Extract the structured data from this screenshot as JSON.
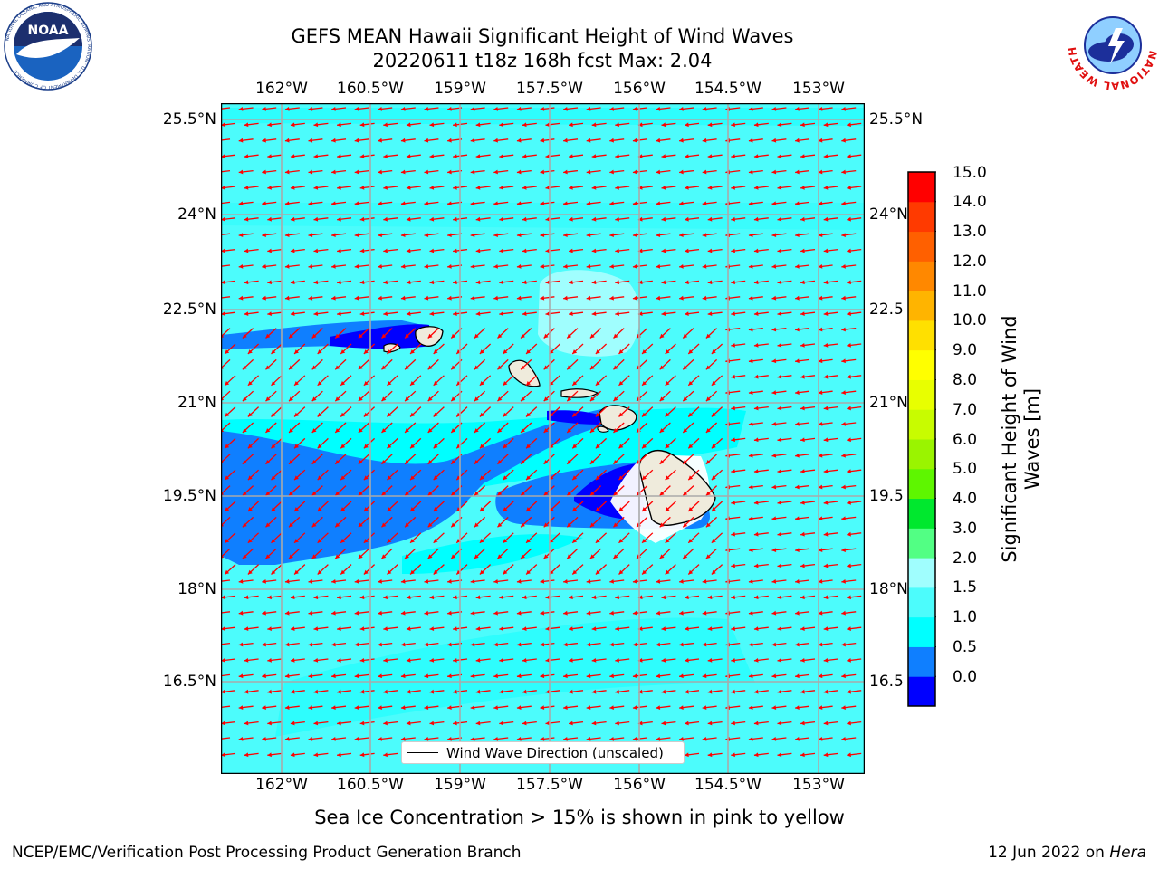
{
  "title": {
    "line1": "GEFS MEAN Hawaii Significant Height of Wind Waves",
    "line2": "20220611 t18z 168h fcst   Max: 2.04"
  },
  "map": {
    "lon_ticks": [
      "162°W",
      "160.5°W",
      "159°W",
      "157.5°W",
      "156°W",
      "154.5°W",
      "153°W"
    ],
    "lat_ticks": [
      "25.5°N",
      "24°N",
      "22.5°N",
      "21°N",
      "19.5°N",
      "18°N",
      "16.5°N"
    ],
    "lat_ticks_right": [
      "25.5°N",
      "24°N",
      "22.5",
      "21°N",
      "19.5",
      "18°N",
      "16.5"
    ],
    "arrow_color": "#ff0000",
    "legend_label": "Wind Wave Direction (unscaled)"
  },
  "colorbar": {
    "label": "Significant Height of Wind Waves [m]",
    "ticks": [
      "15.0",
      "14.0",
      "13.0",
      "12.0",
      "11.0",
      "10.0",
      "9.0",
      "8.0",
      "7.0",
      "6.0",
      "5.0",
      "4.0",
      "3.0",
      "2.0",
      "1.5",
      "1.0",
      "0.5",
      "0.0"
    ],
    "colors": [
      "#0000ff",
      "#0f7fff",
      "#00ffff",
      "#4cfcfc",
      "#a0fefe",
      "#52ff84",
      "#00e82e",
      "#5ef600",
      "#9af400",
      "#c8fc00",
      "#e8ff00",
      "#ffff00",
      "#ffe000",
      "#ffb400",
      "#ff8800",
      "#ff6000",
      "#ff3a00",
      "#ff0000"
    ]
  },
  "caption": "Sea Ice Concentration > 15% is shown in pink to yellow",
  "footer": {
    "left": "NCEP/EMC/Verification Post Processing Product Generation Branch",
    "right_date": "12 Jun 2022 on ",
    "right_host": "Hera"
  },
  "logos": {
    "left": "NOAA",
    "left_ring": "NATIONAL OCEANIC AND ATMOSPHERIC ADMINISTRATION · U.S. DEPARTMENT OF COMMERCE",
    "right_ring": "NATIONAL WEATHER SERVICE"
  }
}
